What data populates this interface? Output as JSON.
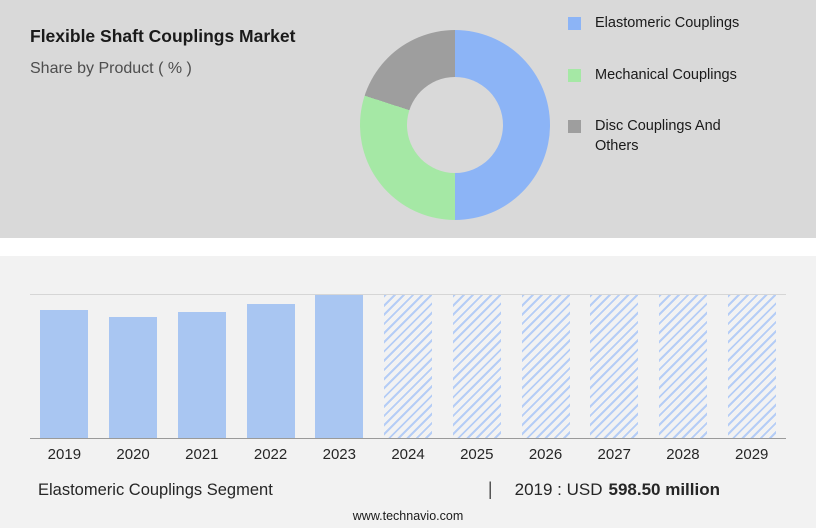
{
  "header": {
    "title": "Flexible Shaft Couplings Market",
    "subtitle": "Share by Product ( % )"
  },
  "colors": {
    "top_background": "#D9D9D9",
    "bottom_background": "#F2F2F2",
    "bar_solid": "#A9C6F2",
    "bar_hatch": "#B5CDF6"
  },
  "legend": [
    {
      "label": "Elastomeric Couplings",
      "color": "#8CB4F6"
    },
    {
      "label": "Mechanical Couplings",
      "color": "#A5E8A5"
    },
    {
      "label": "Disc Couplings And Others",
      "color": "#9E9E9E"
    }
  ],
  "chart_data": [
    {
      "type": "pie",
      "donut": true,
      "title": "Share by Product ( % )",
      "labels": [
        "Elastomeric Couplings",
        "Mechanical Couplings",
        "Disc Couplings And Others"
      ],
      "values": [
        50,
        30,
        20
      ],
      "colors": [
        "#8CB4F6",
        "#A5E8A5",
        "#9E9E9E"
      ],
      "legend_position": "right"
    },
    {
      "type": "bar",
      "categories": [
        "2019",
        "2020",
        "2021",
        "2022",
        "2023",
        "2024",
        "2025",
        "2026",
        "2027",
        "2028",
        "2029"
      ],
      "values": [
        598.5,
        566,
        589,
        627,
        669,
        null,
        null,
        null,
        null,
        null,
        null
      ],
      "bar_heights_pct": [
        89.5,
        84.6,
        88.1,
        93.7,
        100,
        100,
        100,
        100,
        100,
        100,
        100
      ],
      "bar_styles": [
        "solid",
        "solid",
        "solid",
        "solid",
        "solid",
        "hatched",
        "hatched",
        "hatched",
        "hatched",
        "hatched",
        "hatched"
      ],
      "unit": "USD million",
      "note": "Only 2019 value (USD 598.50 million) is labeled; 2024-2029 forecast bars are hatched full-height placeholders",
      "xlabel": "",
      "ylabel": "",
      "grid": false
    }
  ],
  "footer": {
    "segment_label": "Elastomeric Couplings Segment",
    "separator": "|",
    "value_prefix": "2019 : USD",
    "value_bold": "598.50 million",
    "website": "www.technavio.com"
  }
}
